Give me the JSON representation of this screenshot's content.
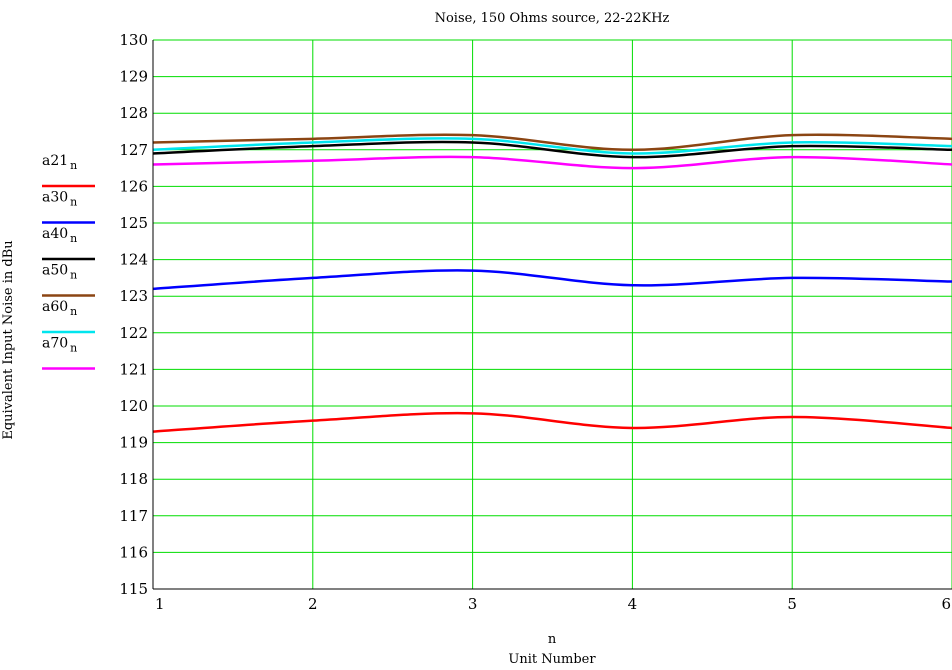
{
  "chart_data": {
    "type": "line",
    "title": "Noise, 150 Ohms source, 22-22KHz",
    "xlabel_top": "n",
    "xlabel": "Unit Number",
    "ylabel": "Equivalent Input Noise in dBu",
    "xlim": [
      1,
      6
    ],
    "ylim": [
      115,
      130
    ],
    "x_ticks": [
      "1",
      "2",
      "3",
      "4",
      "5",
      "6"
    ],
    "y_ticks": [
      "115",
      "116",
      "117",
      "118",
      "119",
      "120",
      "121",
      "122",
      "123",
      "124",
      "125",
      "126",
      "127",
      "128",
      "129",
      "130"
    ],
    "grid": true,
    "grid_color": "#00dd00",
    "legend_position": "left",
    "x": [
      1,
      2,
      3,
      4,
      5,
      6
    ],
    "series": [
      {
        "name": "a21",
        "subscript": "n",
        "color": "#ff0000",
        "values": [
          119.3,
          119.6,
          119.8,
          119.4,
          119.7,
          119.4
        ]
      },
      {
        "name": "a30",
        "subscript": "n",
        "color": "#0000ff",
        "values": [
          123.2,
          123.5,
          123.7,
          123.3,
          123.5,
          123.4
        ]
      },
      {
        "name": "a40",
        "subscript": "n",
        "color": "#000000",
        "values": [
          126.9,
          127.1,
          127.2,
          126.8,
          127.1,
          127.0
        ]
      },
      {
        "name": "a50",
        "subscript": "n",
        "color": "#8b4513",
        "values": [
          127.2,
          127.3,
          127.4,
          127.0,
          127.4,
          127.3
        ]
      },
      {
        "name": "a60",
        "subscript": "n",
        "color": "#00e5ee",
        "values": [
          127.0,
          127.2,
          127.3,
          126.9,
          127.2,
          127.1
        ]
      },
      {
        "name": "a70",
        "subscript": "n",
        "color": "#ff00ff",
        "values": [
          126.6,
          126.7,
          126.8,
          126.5,
          126.8,
          126.6
        ]
      }
    ]
  }
}
